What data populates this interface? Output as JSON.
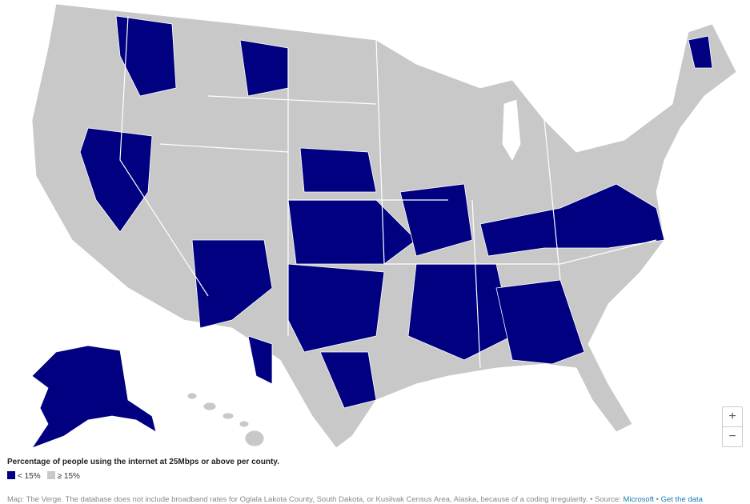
{
  "legend": {
    "title": "Percentage of people using the internet at 25Mbps or above per county.",
    "items": [
      {
        "label": "< 15%",
        "color": "#000080"
      },
      {
        "label": "≥ 15%",
        "color": "#c8c8c8"
      }
    ]
  },
  "source": {
    "note": "Map: The Verge. The database does not include broadband rates for Oglala Lakota County, South Dakota, or Kusilvak Census Area, Alaska, because of a coding irregularity.",
    "separator": "•",
    "prefix": "Source:",
    "link": "Microsoft",
    "data_link": "Get the data"
  },
  "zoom": {
    "in": "+",
    "out": "−"
  }
}
